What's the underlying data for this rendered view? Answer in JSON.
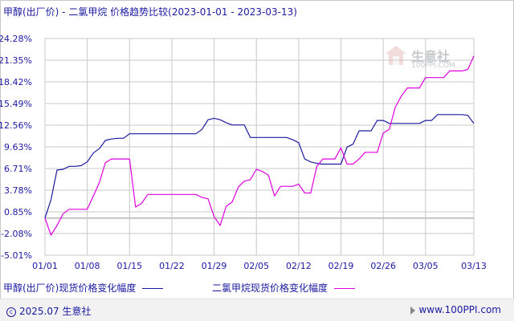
{
  "title": "甲醇(出厂价) - 二氯甲烷 价格趋势比较(2023-01-01 - 2023-03-13)",
  "watermark": {
    "brand": "生意社",
    "site": "100PPI.COM"
  },
  "footer": {
    "copyright": "2025.07 生意社",
    "url": "www.100PPI.com"
  },
  "colors": {
    "series1": "#1a1aa0",
    "series2": "#e000e0",
    "grid": "#c8c8c8",
    "zero": "#909090"
  },
  "chart_data": {
    "type": "line",
    "y_ticks": [
      "24.28%",
      "21.35%",
      "18.42%",
      "15.49%",
      "12.56%",
      "9.63%",
      "6.71%",
      "3.78%",
      "0.85%",
      "-2.08%",
      "-5.01%"
    ],
    "x_ticks": [
      "01/01",
      "01/08",
      "01/15",
      "01/22",
      "01/29",
      "02/05",
      "02/12",
      "02/19",
      "02/26",
      "03/05",
      "03/13"
    ],
    "x_tick_days": [
      0,
      7,
      14,
      21,
      28,
      35,
      42,
      49,
      56,
      63,
      71
    ],
    "ylim": [
      -5.01,
      24.28
    ],
    "grid": true,
    "legend_position": "bottom",
    "series": [
      {
        "name": "甲醇(出厂价)现货价格变化幅度",
        "points": [
          [
            0,
            0
          ],
          [
            1,
            2.5
          ],
          [
            2,
            6.5
          ],
          [
            3,
            6.6
          ],
          [
            4,
            7
          ],
          [
            5,
            7
          ],
          [
            6,
            7.1
          ],
          [
            7,
            7.6
          ],
          [
            8,
            8.8
          ],
          [
            9,
            9.4
          ],
          [
            10,
            10.5
          ],
          [
            11,
            10.7
          ],
          [
            12,
            10.8
          ],
          [
            13,
            10.8
          ],
          [
            14,
            11.4
          ],
          [
            15,
            11.4
          ],
          [
            16,
            11.4
          ],
          [
            17,
            11.4
          ],
          [
            18,
            11.4
          ],
          [
            19,
            11.4
          ],
          [
            20,
            11.4
          ],
          [
            21,
            11.4
          ],
          [
            22,
            11.4
          ],
          [
            23,
            11.4
          ],
          [
            24,
            11.4
          ],
          [
            25,
            11.4
          ],
          [
            26,
            12
          ],
          [
            27,
            13.3
          ],
          [
            28,
            13.5
          ],
          [
            29,
            13.3
          ],
          [
            30,
            12.9
          ],
          [
            31,
            12.6
          ],
          [
            32,
            12.6
          ],
          [
            33,
            12.6
          ],
          [
            34,
            10.9
          ],
          [
            35,
            10.9
          ],
          [
            36,
            10.9
          ],
          [
            37,
            10.9
          ],
          [
            38,
            10.9
          ],
          [
            39,
            10.9
          ],
          [
            40,
            10.9
          ],
          [
            41,
            10.6
          ],
          [
            42,
            10.2
          ],
          [
            43,
            8
          ],
          [
            44,
            7.6
          ],
          [
            45,
            7.4
          ],
          [
            46,
            7.3
          ],
          [
            47,
            7.3
          ],
          [
            48,
            7.3
          ],
          [
            49,
            7.3
          ],
          [
            50,
            9.6
          ],
          [
            51,
            10
          ],
          [
            52,
            11.8
          ],
          [
            53,
            11.8
          ],
          [
            54,
            11.8
          ],
          [
            55,
            13.2
          ],
          [
            56,
            13.2
          ],
          [
            57,
            12.8
          ],
          [
            58,
            12.8
          ],
          [
            59,
            12.8
          ],
          [
            60,
            12.8
          ],
          [
            61,
            12.8
          ],
          [
            62,
            12.8
          ],
          [
            63,
            13.2
          ],
          [
            64,
            13.2
          ],
          [
            65,
            14
          ],
          [
            66,
            14
          ],
          [
            67,
            14
          ],
          [
            68,
            14
          ],
          [
            69,
            14
          ],
          [
            70,
            13.9
          ],
          [
            71,
            12.8
          ]
        ]
      },
      {
        "name": "二氯甲烷现货价格变化幅度",
        "points": [
          [
            0,
            0
          ],
          [
            1,
            -2.3
          ],
          [
            2,
            -1
          ],
          [
            3,
            0.6
          ],
          [
            4,
            1.2
          ],
          [
            5,
            1.2
          ],
          [
            6,
            1.2
          ],
          [
            7,
            1.2
          ],
          [
            8,
            3
          ],
          [
            9,
            4.8
          ],
          [
            10,
            7.5
          ],
          [
            11,
            8
          ],
          [
            12,
            8
          ],
          [
            13,
            8
          ],
          [
            14,
            8
          ],
          [
            15,
            1.5
          ],
          [
            16,
            2
          ],
          [
            17,
            3.2
          ],
          [
            18,
            3.2
          ],
          [
            19,
            3.2
          ],
          [
            20,
            3.2
          ],
          [
            21,
            3.2
          ],
          [
            22,
            3.2
          ],
          [
            23,
            3.2
          ],
          [
            24,
            3.2
          ],
          [
            25,
            3.2
          ],
          [
            26,
            2.8
          ],
          [
            27,
            2.6
          ],
          [
            28,
            0.2
          ],
          [
            29,
            -1
          ],
          [
            30,
            1.6
          ],
          [
            31,
            2.2
          ],
          [
            32,
            4.2
          ],
          [
            33,
            5
          ],
          [
            34,
            5.2
          ],
          [
            35,
            6.6
          ],
          [
            36,
            6.3
          ],
          [
            37,
            5.8
          ],
          [
            38,
            3
          ],
          [
            39,
            4.3
          ],
          [
            40,
            4.3
          ],
          [
            41,
            4.3
          ],
          [
            42,
            4.6
          ],
          [
            43,
            3.4
          ],
          [
            44,
            3.4
          ],
          [
            45,
            7
          ],
          [
            46,
            8
          ],
          [
            47,
            8
          ],
          [
            48,
            8
          ],
          [
            49,
            9.5
          ],
          [
            50,
            7.3
          ],
          [
            51,
            7.3
          ],
          [
            52,
            8
          ],
          [
            53,
            8.9
          ],
          [
            54,
            8.9
          ],
          [
            55,
            8.9
          ],
          [
            56,
            11.5
          ],
          [
            57,
            12
          ],
          [
            58,
            15
          ],
          [
            59,
            16.5
          ],
          [
            60,
            17.6
          ],
          [
            61,
            17.6
          ],
          [
            62,
            17.6
          ],
          [
            63,
            19
          ],
          [
            64,
            19
          ],
          [
            65,
            19
          ],
          [
            66,
            19
          ],
          [
            67,
            19.9
          ],
          [
            68,
            19.9
          ],
          [
            69,
            19.9
          ],
          [
            70,
            20.1
          ],
          [
            71,
            21.9
          ]
        ]
      }
    ]
  }
}
